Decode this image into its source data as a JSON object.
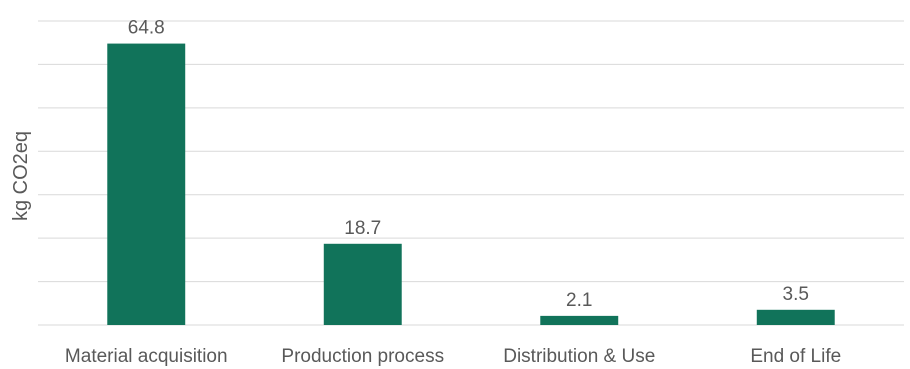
{
  "chart_data": {
    "type": "bar",
    "title": "",
    "xlabel": "",
    "ylabel": "kg CO2eq",
    "categories": [
      "Material acquisition",
      "Production process",
      "Distribution & Use",
      "End of Life"
    ],
    "values": [
      64.8,
      18.7,
      2.1,
      3.5
    ],
    "data_labels": [
      "64.8",
      "18.7",
      "2.1",
      "3.5"
    ],
    "ylim": [
      0,
      70
    ],
    "grid_step": 10,
    "grid": true,
    "legend": "none",
    "bar_color": "#11735A"
  }
}
